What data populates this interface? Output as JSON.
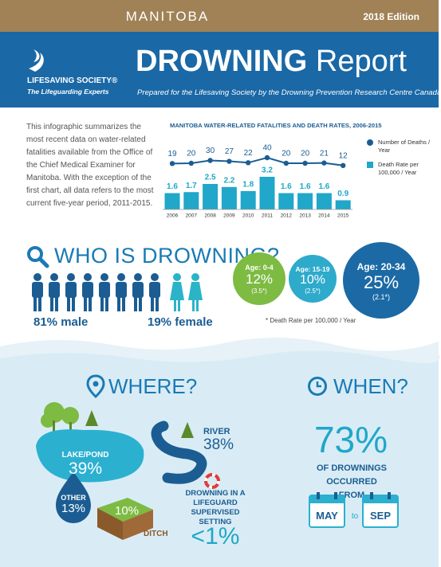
{
  "header": {
    "region": "MANITOBA",
    "edition": "2018 Edition"
  },
  "logo": {
    "name": "LIFESAVING SOCIETY®",
    "tagline": "The Lifeguarding Experts"
  },
  "title": {
    "main": "DROWNING",
    "rest": "Report",
    "subtitle": "Prepared for the Lifesaving Society by the Drowning Prevention Research Centre Canada"
  },
  "intro": "This infographic summarizes the most recent data on water-related fatalities available from the Office of the Chief Medical Examiner for Manitoba. With the exception of the first chart, all data refers to the most current five-year period, 2011-2015.",
  "chart_data": {
    "type": "bar",
    "title": "MANITOBA WATER-RELATED FATALITIES AND DEATH RATES, 2006-2015",
    "categories": [
      "2006",
      "2007",
      "2008",
      "2009",
      "2010",
      "2011",
      "2012",
      "2013",
      "2014",
      "2015"
    ],
    "series": [
      {
        "name": "Number of Deaths / Year",
        "type": "line",
        "color": "#1b5d92",
        "values": [
          19,
          20,
          30,
          27,
          22,
          40,
          20,
          20,
          21,
          12
        ]
      },
      {
        "name": "Death Rate per 100,000 / Year",
        "type": "bar",
        "color": "#20a7c9",
        "values": [
          1.6,
          1.7,
          2.5,
          2.2,
          1.8,
          3.2,
          1.6,
          1.6,
          1.6,
          0.9
        ]
      }
    ]
  },
  "who": {
    "title": "WHO IS DROWNING?",
    "male": "81% male",
    "female": "19% female",
    "ages": [
      {
        "age": "Age: 0-4",
        "pct": "12%",
        "rate": "(3.5*)"
      },
      {
        "age": "Age: 15-19",
        "pct": "10%",
        "rate": "(2.5*)"
      },
      {
        "age": "Age: 20-34",
        "pct": "25%",
        "rate": "(2.1*)"
      }
    ],
    "note": "* Death Rate per 100,000 / Year"
  },
  "where": {
    "title": "WHERE?",
    "lake": {
      "label": "LAKE/POND",
      "pct": "39%"
    },
    "river": {
      "label": "RIVER",
      "pct": "38%"
    },
    "other": {
      "label": "OTHER",
      "pct": "13%"
    },
    "ditch": {
      "label": "DITCH",
      "pct": "10%"
    },
    "supervised": {
      "label": "DROWNING IN A LIFEGUARD SUPERVISED SETTING",
      "pct": "<1%"
    }
  },
  "when": {
    "title": "WHEN?",
    "pct": "73%",
    "text": "OF DROWNINGS OCCURRED FROM",
    "from": "MAY",
    "to": "to",
    "until": "SEP"
  }
}
